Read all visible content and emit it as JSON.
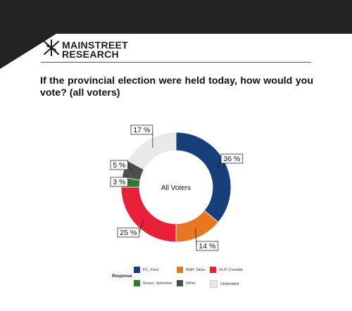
{
  "brand": {
    "line1": "MAINSTREET",
    "line2": "RESEARCH"
  },
  "question": "If the provincial election were held today, how would you vote? (all voters)",
  "chart_data": {
    "type": "pie",
    "donut": true,
    "center_label": "All Voters",
    "legend_title": "Response",
    "legend_position": "bottom",
    "slices": [
      {
        "label": "PC, Ford",
        "value": 36,
        "display": "36 %",
        "color": "#173f7a"
      },
      {
        "label": "NDP, Stiles",
        "value": 14,
        "display": "14 %",
        "color": "#e87722"
      },
      {
        "label": "OLP, Crombie",
        "value": 25,
        "display": "25 %",
        "color": "#e8203a"
      },
      {
        "label": "Green, Schreiner",
        "value": 3,
        "display": "3 %",
        "color": "#2e7d32"
      },
      {
        "label": "Other",
        "value": 5,
        "display": "5 %",
        "color": "#4d4d4d"
      },
      {
        "label": "Undecided",
        "value": 17,
        "display": "17 %",
        "color": "#e9e9e9"
      }
    ]
  }
}
